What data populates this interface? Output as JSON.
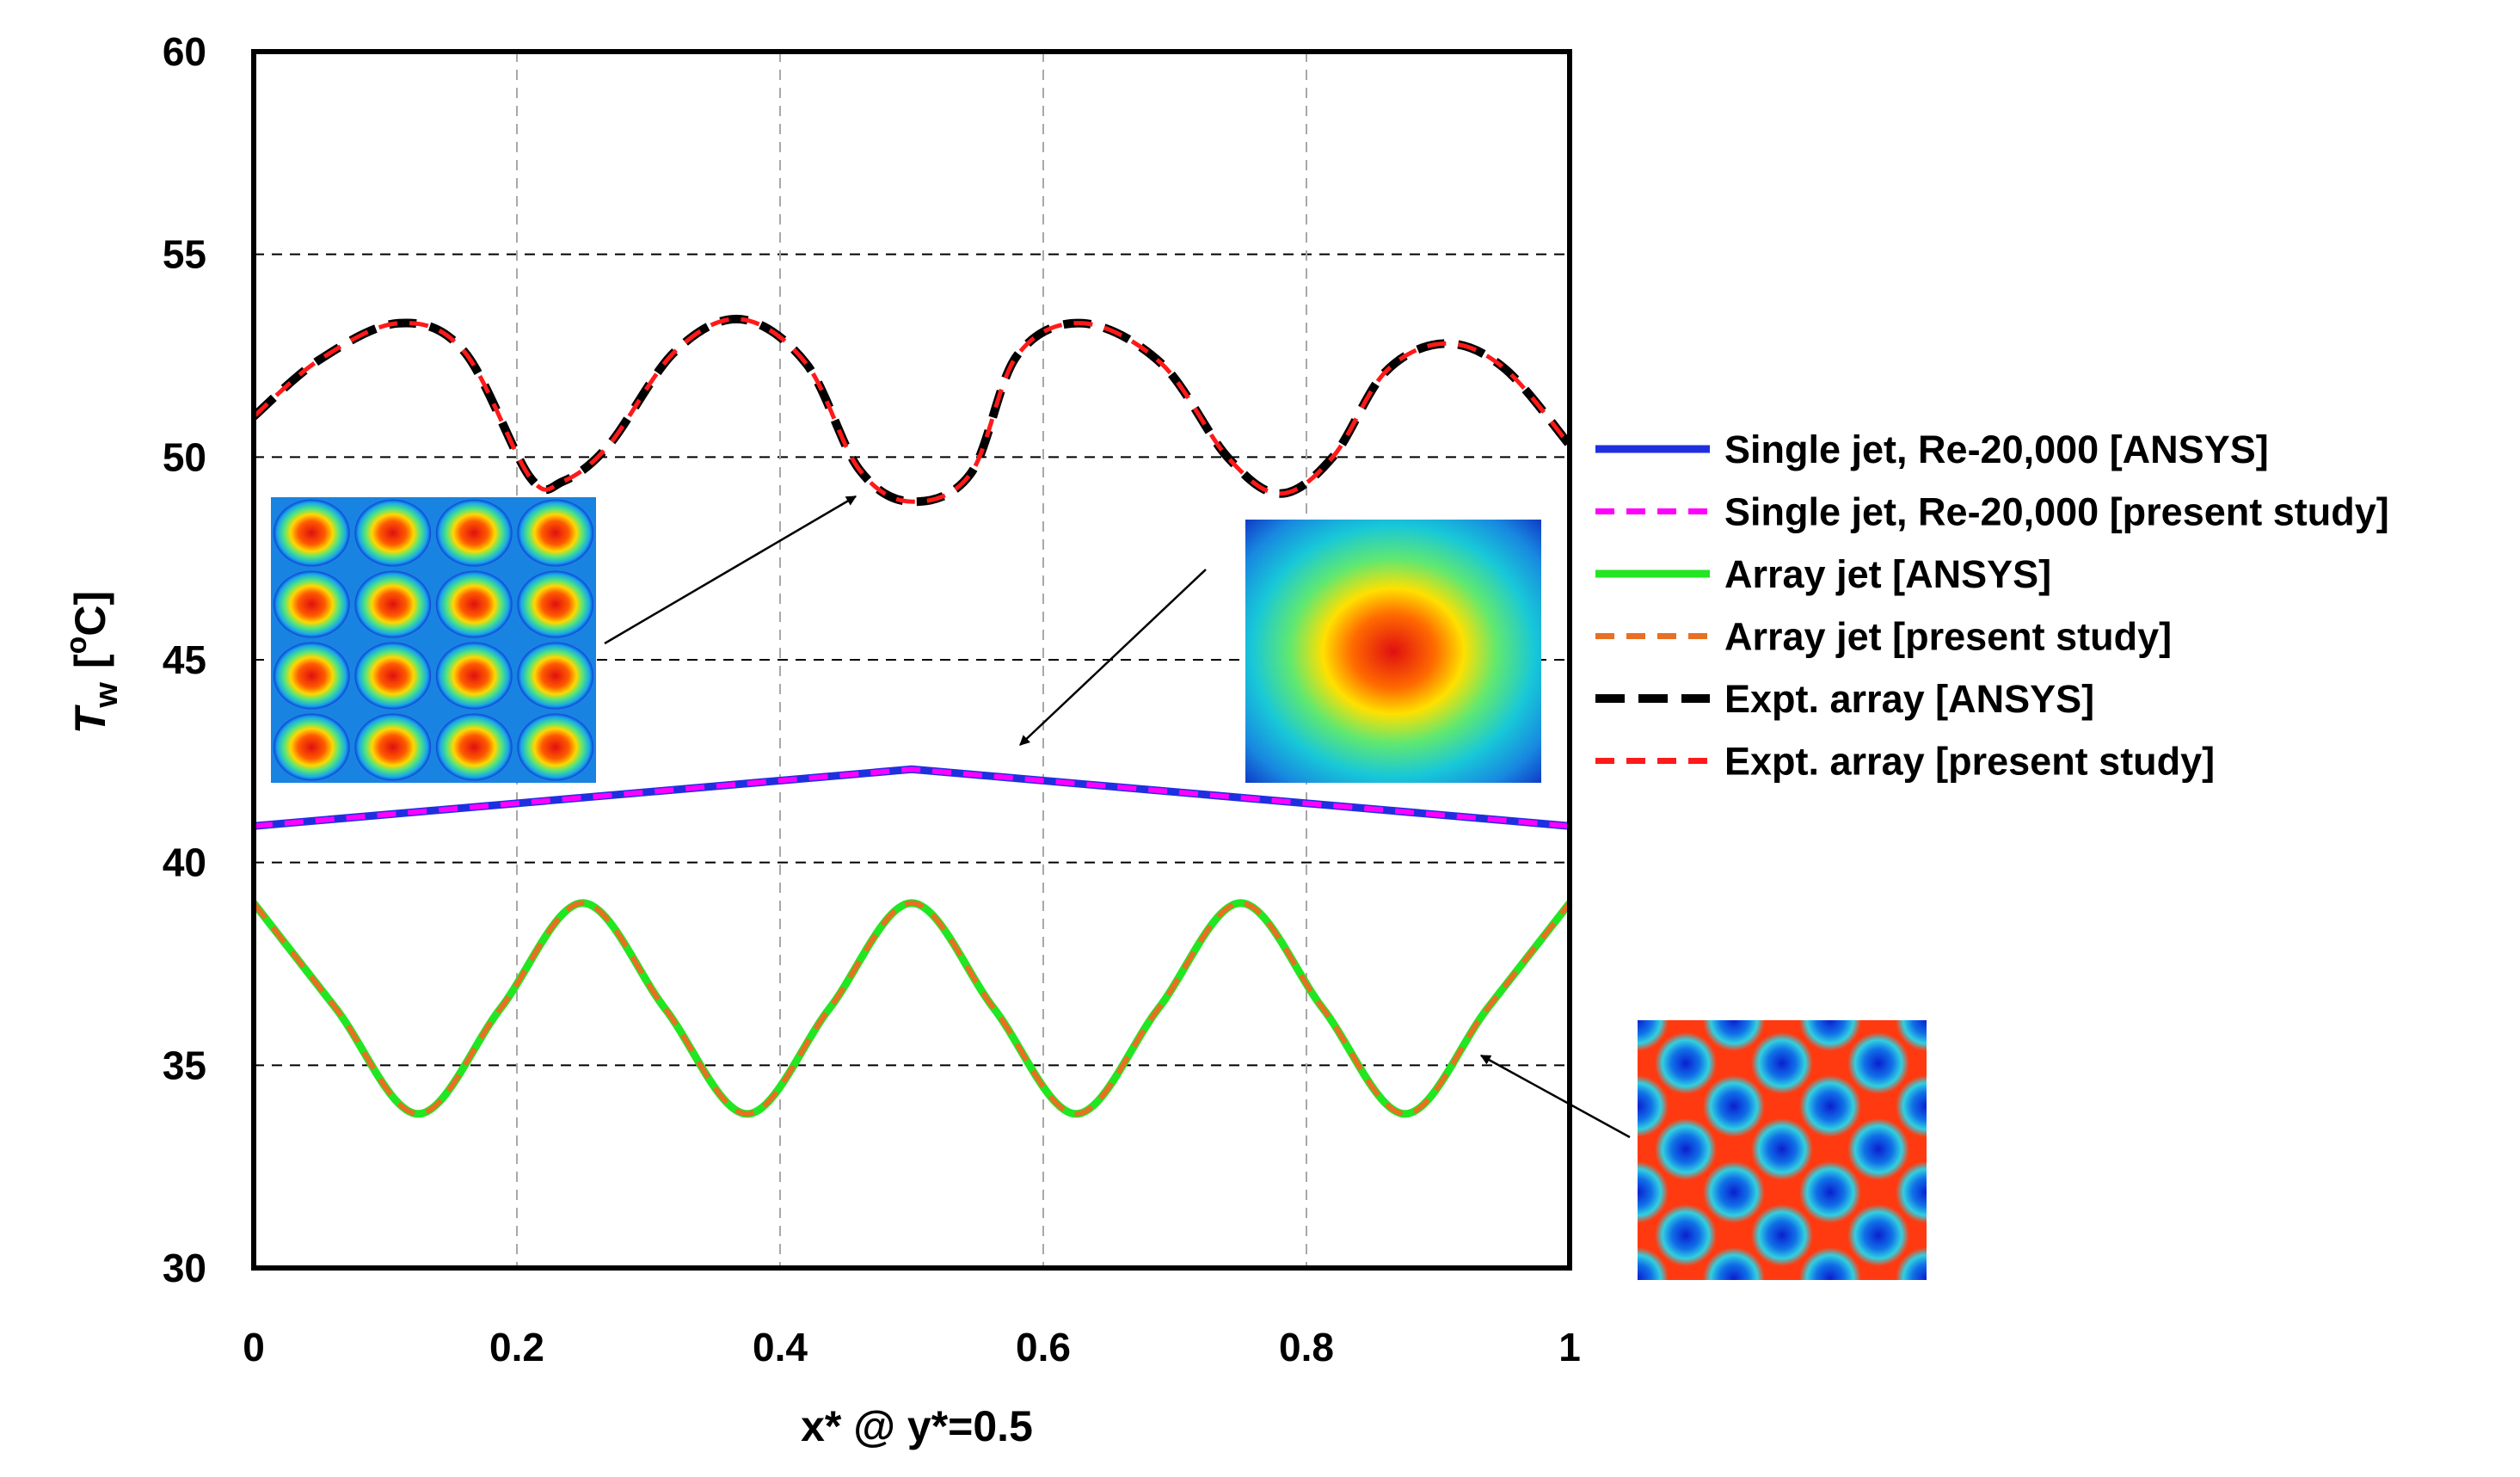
{
  "chart_data": {
    "type": "line",
    "title": "",
    "xlabel": "x* @ y*=0.5",
    "ylabel": "T_w [°C]",
    "ylabel_parts": {
      "var": "T",
      "sub": "w",
      "unit_open": "[",
      "sup": "o",
      "unit_c": "C",
      "unit_close": "]"
    },
    "xlim": [
      0,
      1
    ],
    "ylim": [
      30,
      60
    ],
    "x_ticks": [
      "0",
      "0.2",
      "0.4",
      "0.6",
      "0.8",
      "1"
    ],
    "y_ticks": [
      "30",
      "35",
      "40",
      "45",
      "50",
      "55",
      "60"
    ],
    "grid": {
      "horizontal": true,
      "vertical": true
    },
    "legend_position": "right",
    "colors": {
      "single_ansys": "#1f2fe0",
      "single_present": "#ff00ff",
      "array_ansys": "#22e622",
      "array_present": "#e87022",
      "expt_ansys": "#000000",
      "expt_present": "#ff1a1a"
    },
    "series": [
      {
        "name": "Single jet, Re-20,000 [ANSYS]",
        "key": "single_ansys",
        "style": "solid",
        "x": [
          0,
          0.5,
          1
        ],
        "y": [
          40.9,
          42.3,
          40.9
        ]
      },
      {
        "name": "Single jet, Re-20,000 [present study]",
        "key": "single_present",
        "style": "dashed",
        "x": [
          0,
          0.5,
          1
        ],
        "y": [
          40.9,
          42.3,
          40.9
        ]
      },
      {
        "name": "Array jet [ANSYS]",
        "key": "array_ansys",
        "style": "solid",
        "x": [
          0,
          0.0625,
          0.125,
          0.1875,
          0.25,
          0.3125,
          0.375,
          0.4375,
          0.5,
          0.5625,
          0.625,
          0.6875,
          0.75,
          0.8125,
          0.875,
          0.9375,
          1
        ],
        "y": [
          39.0,
          36.4,
          33.8,
          36.4,
          39.0,
          36.4,
          33.8,
          36.4,
          39.0,
          36.4,
          33.8,
          36.4,
          39.0,
          36.4,
          33.8,
          36.4,
          39.0
        ]
      },
      {
        "name": "Array jet [present study]",
        "key": "array_present",
        "style": "dashed",
        "x": [
          0,
          0.0625,
          0.125,
          0.1875,
          0.25,
          0.3125,
          0.375,
          0.4375,
          0.5,
          0.5625,
          0.625,
          0.6875,
          0.75,
          0.8125,
          0.875,
          0.9375,
          1
        ],
        "y": [
          39.0,
          36.4,
          33.8,
          36.4,
          39.0,
          36.4,
          33.8,
          36.4,
          39.0,
          36.4,
          33.8,
          36.4,
          39.0,
          36.4,
          33.8,
          36.4,
          39.0
        ]
      },
      {
        "name": "Expt. array [ANSYS]",
        "key": "expt_ansys",
        "style": "dashed",
        "x": [
          0,
          0.05,
          0.11,
          0.16,
          0.21,
          0.235,
          0.27,
          0.32,
          0.37,
          0.42,
          0.46,
          0.5,
          0.545,
          0.58,
          0.63,
          0.69,
          0.74,
          0.78,
          0.82,
          0.86,
          0.905,
          0.95,
          1
        ],
        "y": [
          51.0,
          52.4,
          53.3,
          52.6,
          49.5,
          49.4,
          50.3,
          52.6,
          53.4,
          52.3,
          49.7,
          48.9,
          49.6,
          52.5,
          53.3,
          52.3,
          50.0,
          49.1,
          50.0,
          52.1,
          52.8,
          52.2,
          50.3
        ]
      },
      {
        "name": "Expt. array [present study]",
        "key": "expt_present",
        "style": "dashed",
        "x": [
          0,
          0.05,
          0.11,
          0.16,
          0.21,
          0.235,
          0.27,
          0.32,
          0.37,
          0.42,
          0.46,
          0.5,
          0.545,
          0.58,
          0.63,
          0.69,
          0.74,
          0.78,
          0.82,
          0.86,
          0.905,
          0.95,
          1
        ],
        "y": [
          51.0,
          52.4,
          53.3,
          52.6,
          49.5,
          49.4,
          50.3,
          52.6,
          53.4,
          52.3,
          49.7,
          48.9,
          49.6,
          52.5,
          53.3,
          52.3,
          50.0,
          49.1,
          50.0,
          52.1,
          52.8,
          52.2,
          50.3
        ]
      }
    ],
    "annotations": [
      {
        "name": "expt-array-contour",
        "pattern": "4x4 jet array contour",
        "points_to": [
          0.46,
          49.0
        ]
      },
      {
        "name": "single-jet-contour",
        "pattern": "single jet contour",
        "points_to": [
          0.58,
          43.0
        ]
      },
      {
        "name": "array-jet-contour",
        "pattern": "staggered array contour",
        "points_to": [
          0.93,
          35.4
        ]
      }
    ]
  }
}
